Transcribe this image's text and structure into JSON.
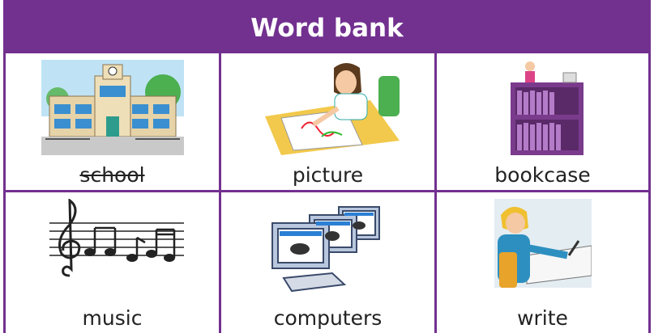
{
  "header": {
    "title": "Word bank"
  },
  "words": [
    {
      "label": "school",
      "crossed_out": true
    },
    {
      "label": "picture",
      "crossed_out": false
    },
    {
      "label": "bookcase",
      "crossed_out": false
    },
    {
      "label": "music",
      "crossed_out": false
    },
    {
      "label": "computers",
      "crossed_out": false
    },
    {
      "label": "write",
      "crossed_out": false
    }
  ]
}
